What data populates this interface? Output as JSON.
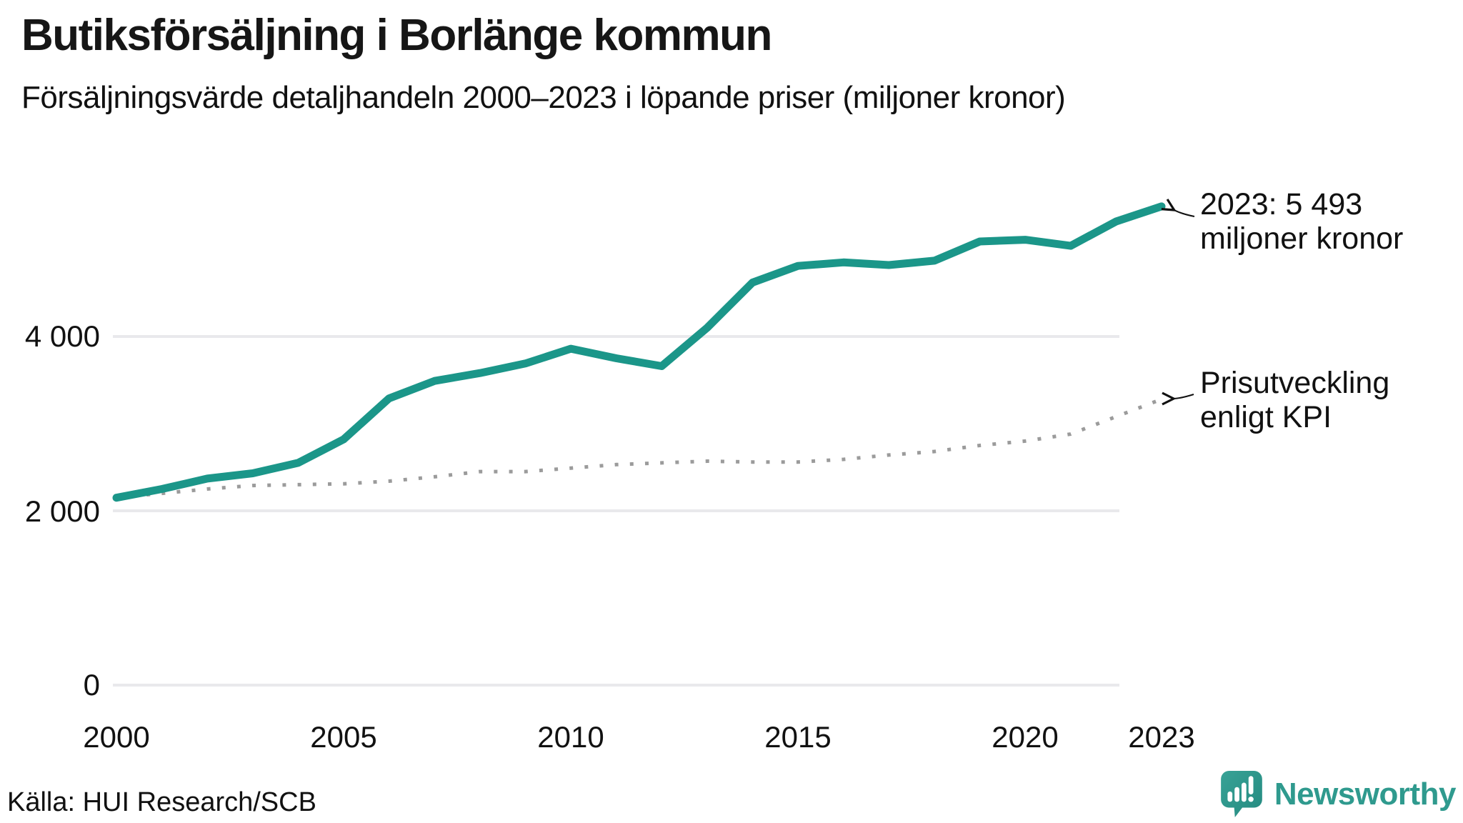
{
  "header": {
    "title": "Butiksförsäljning i Borlänge kommun",
    "subtitle": "Försäljningsvärde detaljhandeln 2000–2023 i löpande priser (miljoner kronor)"
  },
  "chart_data": {
    "type": "line",
    "x": [
      2000,
      2001,
      2002,
      2003,
      2004,
      2005,
      2006,
      2007,
      2008,
      2009,
      2010,
      2011,
      2012,
      2013,
      2014,
      2015,
      2016,
      2017,
      2018,
      2019,
      2020,
      2021,
      2022,
      2023
    ],
    "series": [
      {
        "name": "Butiksförsäljning i löpande priser",
        "color": "#1b9689",
        "style": "solid",
        "values": [
          2150,
          2250,
          2370,
          2430,
          2550,
          2820,
          3290,
          3490,
          3580,
          3690,
          3860,
          3750,
          3660,
          4100,
          4620,
          4810,
          4850,
          4820,
          4870,
          5090,
          5110,
          5040,
          5320,
          5493
        ]
      },
      {
        "name": "Prisutveckling enligt KPI",
        "color": "#9b9b9b",
        "style": "dotted",
        "values": [
          2150,
          2200,
          2250,
          2290,
          2300,
          2310,
          2340,
          2390,
          2450,
          2450,
          2490,
          2530,
          2550,
          2570,
          2560,
          2560,
          2590,
          2640,
          2680,
          2750,
          2800,
          2880,
          3080,
          3280
        ]
      }
    ],
    "yticks": [
      {
        "value": 0,
        "label": "0"
      },
      {
        "value": 2000,
        "label": "2 000"
      },
      {
        "value": 4000,
        "label": "4 000"
      }
    ],
    "xticks": [
      {
        "value": 2000,
        "label": "2000"
      },
      {
        "value": 2005,
        "label": "2005"
      },
      {
        "value": 2010,
        "label": "2010"
      },
      {
        "value": 2015,
        "label": "2015"
      },
      {
        "value": 2020,
        "label": "2020"
      },
      {
        "value": 2023,
        "label": "2023"
      }
    ],
    "ylim": [
      0,
      6000
    ],
    "grid": "horizontal",
    "legend": "none",
    "annotations": [
      {
        "lines": [
          "2023: 5 493",
          "miljoner kronor"
        ]
      },
      {
        "lines": [
          "Prisutveckling",
          "enligt KPI"
        ]
      }
    ]
  },
  "source": {
    "text": "Källa: HUI Research/SCB"
  },
  "logo": {
    "text": "Newsworthy",
    "color": "#2f9a8e",
    "icon": "newsworthy-bar-chart-speech-bubble-icon"
  }
}
